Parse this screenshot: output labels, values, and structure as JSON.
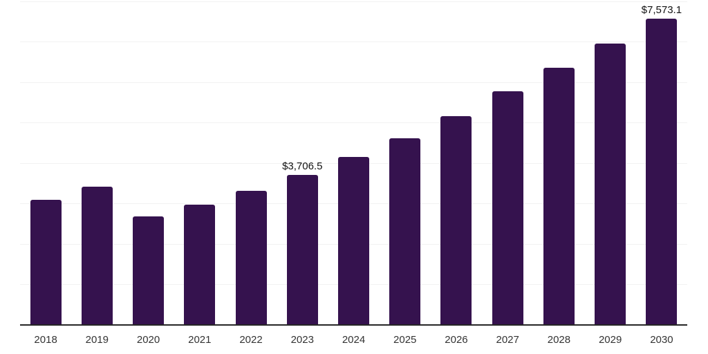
{
  "chart_data": {
    "type": "bar",
    "categories": [
      "2018",
      "2019",
      "2020",
      "2021",
      "2022",
      "2023",
      "2024",
      "2025",
      "2026",
      "2027",
      "2028",
      "2029",
      "2030"
    ],
    "values": [
      3090,
      3415,
      2680,
      2975,
      3320,
      3706.5,
      4150,
      4620,
      5165,
      5780,
      6360,
      6965,
      7573.1
    ],
    "value_labels": [
      "",
      "",
      "",
      "",
      "",
      "$3,706.5",
      "",
      "",
      "",
      "",
      "",
      "",
      "$7,573.1"
    ],
    "ylim": [
      0,
      8000
    ],
    "gridline_step": 1000,
    "grid": true,
    "legend_position": "none",
    "colors": {
      "bar": "#35124e",
      "gridline": "#f2f2f2",
      "axis": "#262626",
      "tick_label": "#333333",
      "value_label": "#111111",
      "background": "#ffffff"
    }
  }
}
